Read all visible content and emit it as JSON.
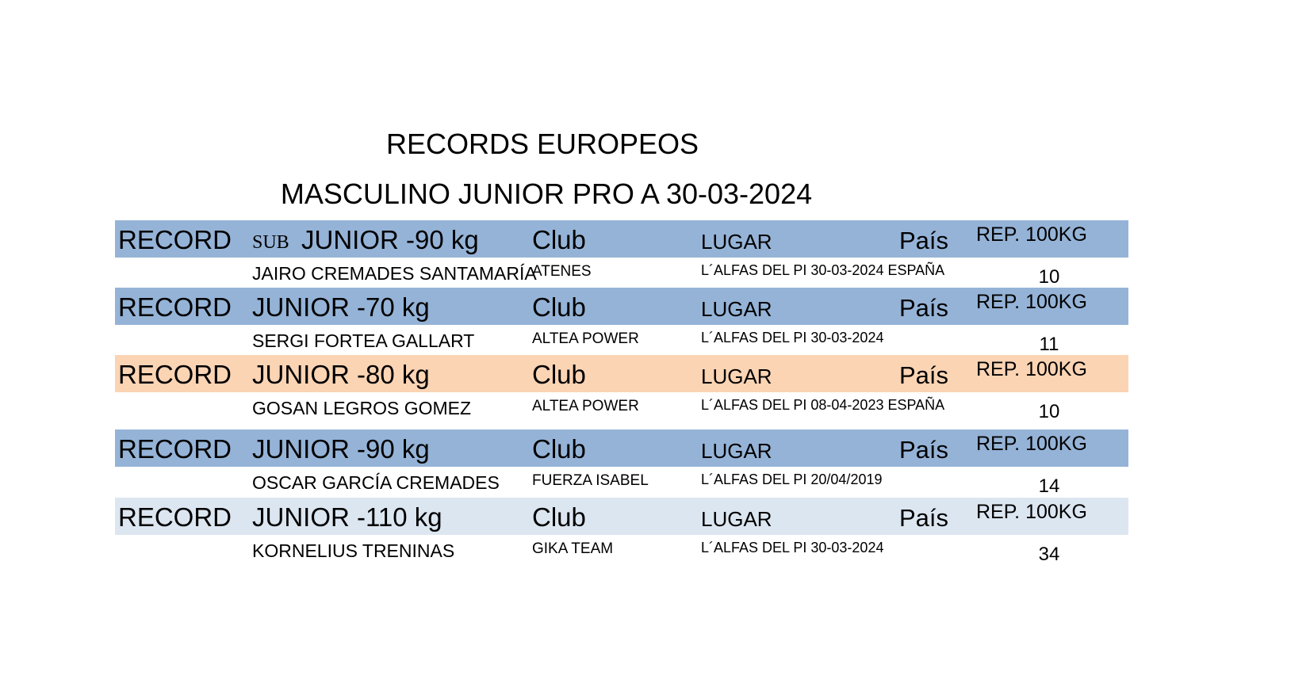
{
  "title": "RECORDS EUROPEOS",
  "subtitle": "MASCULINO JUNIOR PRO A 30-03-2024",
  "records": [
    {
      "color": "#95b3d7",
      "header": {
        "label": "RECORD",
        "prefix": "SUB",
        "category": "JUNIOR -90 kg",
        "club": "Club",
        "place": "LUGAR",
        "country": "País",
        "reps": "REP. 100KG"
      },
      "entry": {
        "name": "JAIRO CREMADES SANTAMARÍA",
        "club": "ATENES",
        "place": "L´ALFAS DEL PI 30-03-2024 ESPAÑA",
        "reps": 10
      }
    },
    {
      "color": "#95b3d7",
      "header": {
        "label": "RECORD",
        "category": "JUNIOR -70 kg",
        "club": "Club",
        "place": "LUGAR",
        "country": "País",
        "reps": "REP. 100KG"
      },
      "entry": {
        "name": "SERGI FORTEA GALLART",
        "club": "ALTEA POWER",
        "place": "L´ALFAS DEL PI 30-03-2024",
        "reps": 11
      }
    },
    {
      "color": "#fbd4b4",
      "header": {
        "label": "RECORD",
        "category": "JUNIOR -80 kg",
        "club": "Club",
        "place": "LUGAR",
        "country": "País",
        "reps": "REP. 100KG"
      },
      "entry": {
        "name": "GOSAN LEGROS GOMEZ",
        "club": "ALTEA POWER",
        "place": "L´ALFAS DEL PI 08-04-2023 ESPAÑA",
        "reps": 10
      }
    },
    {
      "color": "#95b3d7",
      "header": {
        "label": "RECORD",
        "category": "JUNIOR -90 kg",
        "club": "Club",
        "place": "LUGAR",
        "country": "País",
        "reps": "REP. 100KG"
      },
      "entry": {
        "name": "OSCAR GARCÍA CREMADES",
        "club": "FUERZA ISABEL",
        "place": "L´ALFAS DEL PI 20/04/2019",
        "reps": 14
      }
    },
    {
      "color": "#dce6f1",
      "header": {
        "label": "RECORD",
        "category": "JUNIOR -110 kg",
        "club": "Club",
        "place": "LUGAR",
        "country": "País",
        "reps": "REP. 100KG"
      },
      "entry": {
        "name": "KORNELIUS TRENINAS",
        "club": "GIKA TEAM",
        "place": "L´ALFAS DEL PI 30-03-2024",
        "reps": 34
      }
    }
  ]
}
